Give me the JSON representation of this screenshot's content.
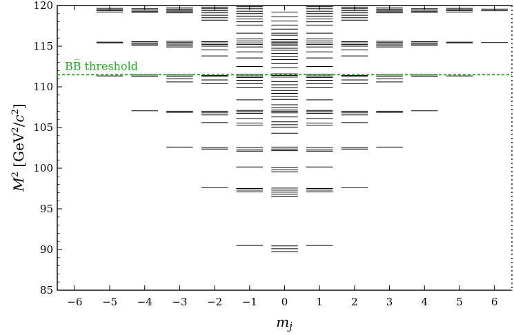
{
  "chart_data": {
    "type": "scatter",
    "title": "",
    "xlabel": "m_j",
    "ylabel": "M^2 [GeV^2/c^2]",
    "xlim": [
      -6.5,
      6.5
    ],
    "ylim": [
      85,
      120
    ],
    "x_ticks": [
      "-6",
      "-5",
      "-4",
      "-3",
      "-2",
      "-1",
      "0",
      "1",
      "2",
      "3",
      "4",
      "5",
      "6"
    ],
    "y_ticks": [
      "85",
      "90",
      "95",
      "100",
      "105",
      "110",
      "115",
      "120"
    ],
    "grid": false,
    "threshold": {
      "label": "BB̅ threshold",
      "value": 111.5,
      "color": "#22aa22"
    },
    "levels": [
      {
        "m_j": -5,
        "values": [
          119.2,
          119.35,
          119.5,
          119.65,
          115.4,
          115.5,
          111.35
        ]
      },
      {
        "m_j": -4,
        "values": [
          119.15,
          119.3,
          119.45,
          119.6,
          115.1,
          115.25,
          115.4,
          115.55,
          111.3,
          111.45,
          107.05
        ]
      },
      {
        "m_j": -3,
        "values": [
          119.1,
          119.25,
          119.4,
          119.55,
          119.7,
          114.9,
          115.05,
          115.25,
          115.45,
          115.6,
          111.0,
          111.25,
          111.45,
          110.6,
          106.85,
          107.0,
          102.6
        ]
      },
      {
        "m_j": -2,
        "values": [
          118.2,
          118.5,
          118.8,
          119.1,
          119.35,
          119.6,
          119.8,
          115.0,
          115.2,
          115.4,
          115.55,
          114.55,
          113.8,
          111.25,
          111.4,
          110.85,
          110.4,
          107.0,
          106.8,
          106.55,
          105.6,
          102.35,
          102.55,
          97.6
        ]
      },
      {
        "m_j": -1,
        "values": [
          119.85,
          119.6,
          119.3,
          119.0,
          118.7,
          118.35,
          118.0,
          117.6,
          116.6,
          115.9,
          115.65,
          115.4,
          115.2,
          114.9,
          114.3,
          113.55,
          112.5,
          111.55,
          111.35,
          111.15,
          110.8,
          110.4,
          109.95,
          108.4,
          107.1,
          106.95,
          106.75,
          106.1,
          105.55,
          105.3,
          102.5,
          102.25,
          102.1,
          100.15,
          97.5,
          97.3,
          97.1,
          90.5
        ]
      },
      {
        "m_j": 0,
        "values": [
          119.2,
          118.6,
          118.1,
          117.6,
          117.1,
          116.6,
          116.35,
          115.8,
          115.6,
          115.45,
          115.25,
          115.05,
          114.75,
          114.5,
          114.1,
          113.75,
          113.35,
          112.85,
          112.35,
          111.6,
          111.4,
          111.2,
          110.65,
          110.25,
          109.9,
          109.55,
          109.2,
          108.85,
          108.45,
          107.8,
          107.45,
          107.15,
          107.0,
          106.8,
          106.3,
          105.7,
          105.35,
          105.05,
          104.3,
          102.6,
          102.35,
          102.15,
          100.1,
          99.8,
          99.55,
          97.55,
          97.3,
          97.05,
          96.8,
          96.5,
          90.45,
          90.1,
          89.75
        ]
      },
      {
        "m_j": 1,
        "values": [
          119.85,
          119.6,
          119.3,
          119.0,
          118.7,
          118.35,
          118.0,
          117.6,
          116.6,
          115.9,
          115.65,
          115.4,
          115.2,
          114.9,
          114.3,
          113.55,
          112.5,
          111.55,
          111.35,
          111.15,
          110.8,
          110.4,
          109.95,
          108.4,
          107.1,
          106.95,
          106.75,
          106.1,
          105.55,
          105.3,
          102.5,
          102.25,
          102.1,
          100.15,
          97.5,
          97.3,
          97.1,
          90.5
        ]
      },
      {
        "m_j": 2,
        "values": [
          118.2,
          118.5,
          118.8,
          119.1,
          119.35,
          119.6,
          119.8,
          115.0,
          115.2,
          115.4,
          115.55,
          114.55,
          113.8,
          111.25,
          111.4,
          110.85,
          110.4,
          107.0,
          106.8,
          106.55,
          105.6,
          102.35,
          102.55,
          97.6
        ]
      },
      {
        "m_j": 3,
        "values": [
          119.1,
          119.25,
          119.4,
          119.55,
          119.7,
          114.9,
          115.05,
          115.25,
          115.45,
          115.6,
          111.0,
          111.25,
          111.45,
          110.6,
          106.85,
          107.0,
          102.6
        ]
      },
      {
        "m_j": 4,
        "values": [
          119.15,
          119.3,
          119.45,
          119.6,
          115.1,
          115.25,
          115.4,
          115.55,
          111.3,
          111.45,
          107.05
        ]
      },
      {
        "m_j": 5,
        "values": [
          119.2,
          119.35,
          119.5,
          119.65,
          115.4,
          115.5,
          111.35
        ]
      },
      {
        "m_j": 6,
        "values": [
          119.35,
          119.55,
          115.45
        ]
      }
    ]
  }
}
